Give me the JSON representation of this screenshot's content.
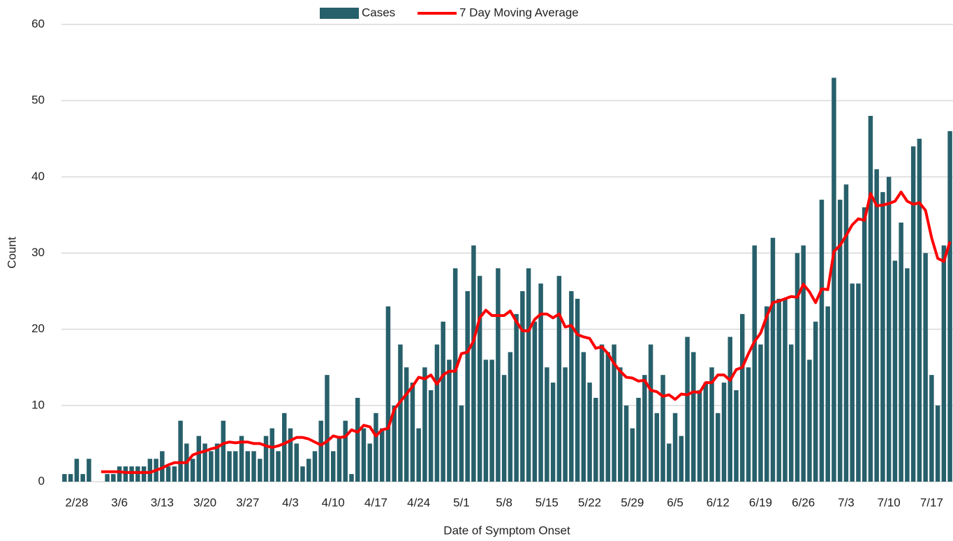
{
  "chart_data": {
    "type": "bar-line",
    "x_label": "Date of Symptom Onset",
    "y_label": "Count",
    "categories": [
      null,
      null,
      "2/28",
      null,
      null,
      null,
      null,
      null,
      null,
      "3/6",
      null,
      null,
      null,
      null,
      null,
      null,
      "3/13",
      null,
      null,
      null,
      null,
      null,
      null,
      "3/20",
      null,
      null,
      null,
      null,
      null,
      null,
      "3/27",
      null,
      null,
      null,
      null,
      null,
      null,
      "4/3",
      null,
      null,
      null,
      null,
      null,
      null,
      "4/10",
      null,
      null,
      null,
      null,
      null,
      null,
      "4/17",
      null,
      null,
      null,
      null,
      null,
      null,
      "4/24",
      null,
      null,
      null,
      null,
      null,
      null,
      "5/1",
      null,
      null,
      null,
      null,
      null,
      null,
      "5/8",
      null,
      null,
      null,
      null,
      null,
      null,
      "5/15",
      null,
      null,
      null,
      null,
      null,
      null,
      "5/22",
      null,
      null,
      null,
      null,
      null,
      null,
      "5/29",
      null,
      null,
      null,
      null,
      null,
      null,
      "6/5",
      null,
      null,
      null,
      null,
      null,
      null,
      "6/12",
      null,
      null,
      null,
      null,
      null,
      null,
      "6/19",
      null,
      null,
      null,
      null,
      null,
      null,
      "6/26",
      null,
      null,
      null,
      null,
      null,
      null,
      "7/3",
      null,
      null,
      null,
      null,
      null,
      null,
      "7/10",
      null,
      null,
      null,
      null,
      null,
      null,
      "7/17",
      null,
      null,
      null
    ],
    "series": [
      {
        "name": "Cases",
        "kind": "bar",
        "color": "#27606b",
        "values": [
          1,
          1,
          3,
          1,
          3,
          0,
          0,
          1,
          1,
          2,
          2,
          2,
          2,
          2,
          3,
          3,
          4,
          2,
          2,
          8,
          5,
          3,
          6,
          5,
          4,
          5,
          8,
          4,
          4,
          6,
          4,
          4,
          3,
          6,
          7,
          4,
          9,
          7,
          5,
          2,
          3,
          4,
          8,
          14,
          4,
          6,
          8,
          1,
          11,
          7,
          5,
          9,
          7,
          23,
          10,
          18,
          15,
          13,
          7,
          15,
          12,
          18,
          21,
          16,
          28,
          10,
          25,
          31,
          27,
          16,
          16,
          28,
          14,
          17,
          22,
          25,
          28,
          21,
          26,
          15,
          13,
          27,
          15,
          25,
          24,
          17,
          13,
          11,
          18,
          17,
          18,
          15,
          10,
          7,
          11,
          14,
          18,
          9,
          14,
          5,
          9,
          6,
          19,
          17,
          12,
          13,
          15,
          9,
          13,
          19,
          12,
          22,
          15,
          31,
          18,
          23,
          32,
          24,
          24,
          18,
          30,
          31,
          16,
          21,
          37,
          23,
          53,
          37,
          39,
          26,
          26,
          36,
          48,
          41,
          38,
          40,
          29,
          34,
          28,
          44,
          45,
          30,
          14,
          10,
          31,
          46
        ]
      },
      {
        "name": "7 Day Moving Average",
        "kind": "line",
        "color": "#ff0000",
        "values": [
          null,
          null,
          null,
          null,
          null,
          null,
          1.3,
          1.3,
          1.3,
          1.3,
          1.2,
          1.2,
          1.2,
          1.2,
          1.2,
          1.5,
          1.8,
          2.2,
          2.5,
          2.5,
          2.5,
          3.5,
          3.8,
          4,
          4.3,
          4.5,
          5,
          5.2,
          5.1,
          5.2,
          5.2,
          5,
          5,
          4.7,
          4.5,
          4.7,
          5,
          5.4,
          5.8,
          5.8,
          5.6,
          5.2,
          4.8,
          5.3,
          6,
          5.8,
          5.9,
          6.8,
          6.5,
          7.4,
          7.2,
          6,
          6.8,
          7,
          9.5,
          10.5,
          11.5,
          12.5,
          13.7,
          13.5,
          14,
          12.8,
          14,
          14.5,
          14.5,
          16.8,
          17,
          18.5,
          21.5,
          22.5,
          21.8,
          21.8,
          21.8,
          22.4,
          21,
          19.8,
          19.8,
          21.3,
          22,
          22,
          21.5,
          22,
          20.3,
          20.5,
          19.3,
          19,
          18.8,
          17.5,
          17.7,
          16.8,
          15.5,
          14.5,
          13.7,
          13.6,
          13.2,
          13.3,
          12,
          11.8,
          11.2,
          11.4,
          10.8,
          11.5,
          11.4,
          11.8,
          11.7,
          13,
          13,
          14,
          14,
          13.3,
          14.7,
          15,
          16.8,
          18.4,
          19.5,
          21.7,
          23.5,
          23.7,
          24,
          24.3,
          24.2,
          25.9,
          24.9,
          23.5,
          25.3,
          25.2,
          30.2,
          31,
          32.3,
          33.7,
          34.5,
          34.3,
          37.8,
          36.2,
          36.3,
          36.5,
          36.8,
          38,
          36.8,
          36.4,
          36.6,
          35.6,
          32,
          29.3,
          28.9,
          31.5
        ]
      }
    ],
    "ylim": [
      0,
      60
    ],
    "yticks": [
      0,
      10,
      20,
      30,
      40,
      50,
      60
    ],
    "grid": true,
    "legend": "top"
  }
}
